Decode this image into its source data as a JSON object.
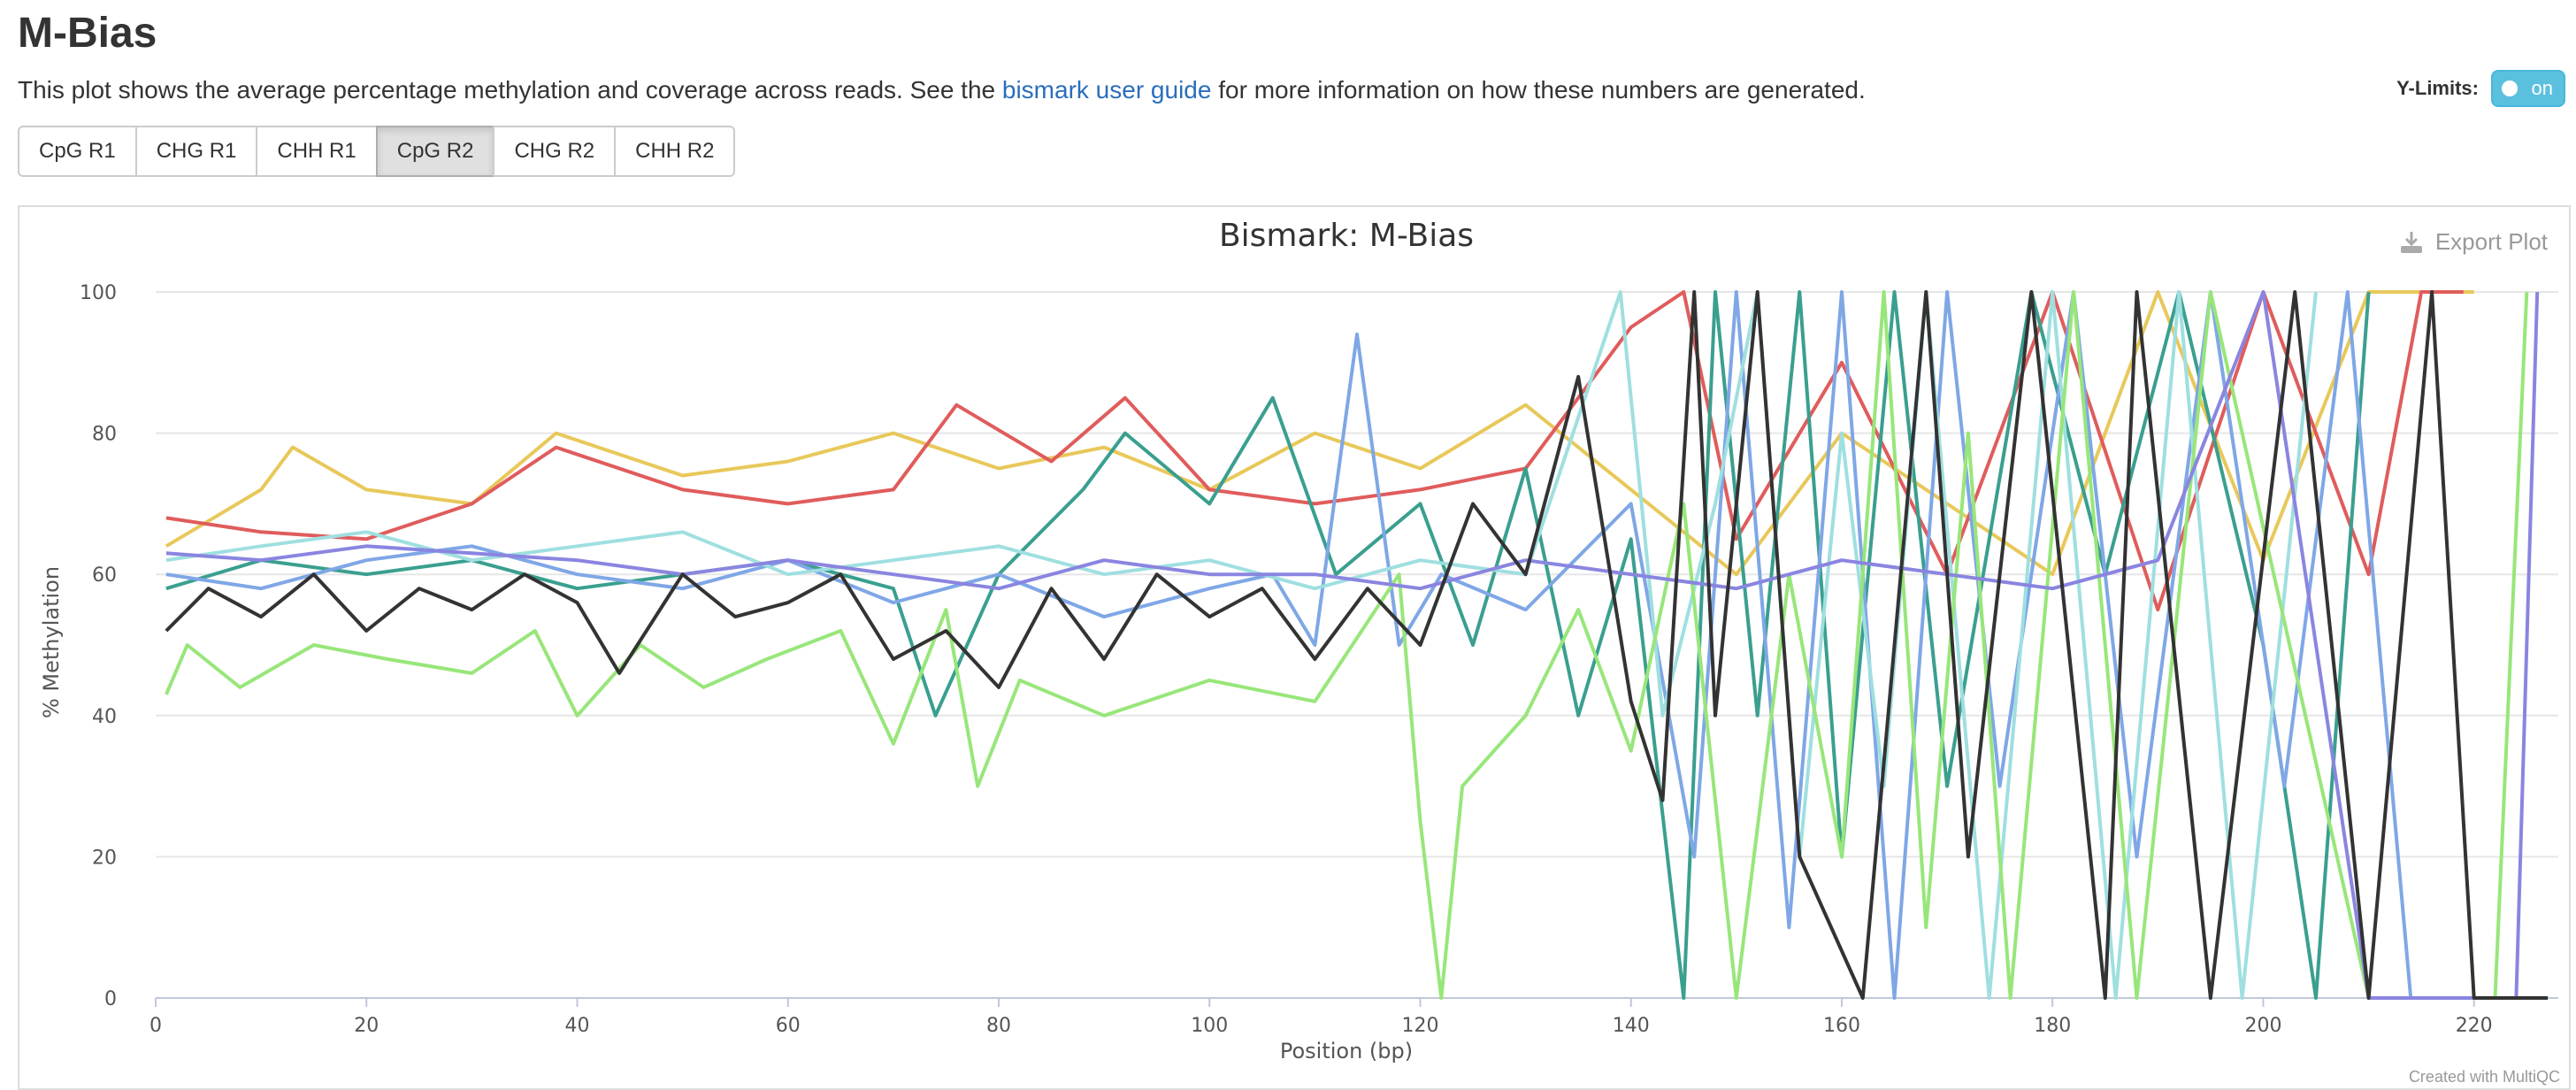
{
  "page": {
    "title": "M-Bias",
    "description_before": "This plot shows the average percentage methylation and coverage across reads. See the ",
    "description_link": "bismark user guide",
    "description_after": " for more information on how these numbers are generated."
  },
  "ylimits": {
    "label": "Y-Limits:",
    "toggle_text": "on",
    "state": "on"
  },
  "tabs": [
    {
      "label": "CpG R1",
      "active": false
    },
    {
      "label": "CHG R1",
      "active": false
    },
    {
      "label": "CHH R1",
      "active": false
    },
    {
      "label": "CpG R2",
      "active": true
    },
    {
      "label": "CHG R2",
      "active": false
    },
    {
      "label": "CHH R2",
      "active": false
    }
  ],
  "plot": {
    "export_label": "Export Plot",
    "credit": "Created with MultiQC"
  },
  "colors": {
    "link": "#2a6ebb",
    "toggle": "#5bc0de",
    "active_tab": "#e0e0e0",
    "grid": "#e6e6e6"
  },
  "chart_data": {
    "type": "line",
    "title": "Bismark: M-Bias",
    "xlabel": "Position (bp)",
    "ylabel": "% Methylation",
    "xlim": [
      0,
      228
    ],
    "ylim": [
      0,
      100
    ],
    "xticks": [
      0,
      20,
      40,
      60,
      80,
      100,
      120,
      140,
      160,
      180,
      200,
      220
    ],
    "yticks": [
      0,
      20,
      40,
      60,
      80,
      100
    ],
    "grid": true,
    "legend": "none",
    "series": [
      {
        "color": "#e8c85a",
        "points": [
          [
            1,
            64
          ],
          [
            10,
            72
          ],
          [
            13,
            78
          ],
          [
            20,
            72
          ],
          [
            30,
            70
          ],
          [
            38,
            80
          ],
          [
            50,
            74
          ],
          [
            60,
            76
          ],
          [
            70,
            80
          ],
          [
            80,
            75
          ],
          [
            90,
            78
          ],
          [
            100,
            72
          ],
          [
            110,
            80
          ],
          [
            120,
            75
          ],
          [
            130,
            84
          ],
          [
            140,
            72
          ],
          [
            150,
            60
          ],
          [
            160,
            80
          ],
          [
            170,
            70
          ],
          [
            180,
            60
          ],
          [
            190,
            100
          ],
          [
            200,
            62
          ],
          [
            210,
            100
          ],
          [
            220,
            100
          ]
        ]
      },
      {
        "color": "#e05c5c",
        "points": [
          [
            1,
            68
          ],
          [
            10,
            66
          ],
          [
            20,
            65
          ],
          [
            30,
            70
          ],
          [
            38,
            78
          ],
          [
            50,
            72
          ],
          [
            60,
            70
          ],
          [
            70,
            72
          ],
          [
            76,
            84
          ],
          [
            85,
            76
          ],
          [
            92,
            85
          ],
          [
            100,
            72
          ],
          [
            110,
            70
          ],
          [
            120,
            72
          ],
          [
            130,
            75
          ],
          [
            140,
            95
          ],
          [
            145,
            100
          ],
          [
            150,
            65
          ],
          [
            160,
            90
          ],
          [
            170,
            60
          ],
          [
            180,
            100
          ],
          [
            190,
            55
          ],
          [
            200,
            100
          ],
          [
            210,
            60
          ],
          [
            215,
            100
          ],
          [
            219,
            100
          ]
        ]
      },
      {
        "color": "#3a9f8f",
        "points": [
          [
            1,
            58
          ],
          [
            10,
            62
          ],
          [
            20,
            60
          ],
          [
            30,
            62
          ],
          [
            40,
            58
          ],
          [
            50,
            60
          ],
          [
            60,
            62
          ],
          [
            70,
            58
          ],
          [
            74,
            40
          ],
          [
            80,
            60
          ],
          [
            88,
            72
          ],
          [
            92,
            80
          ],
          [
            100,
            70
          ],
          [
            106,
            85
          ],
          [
            112,
            60
          ],
          [
            120,
            70
          ],
          [
            125,
            50
          ],
          [
            130,
            75
          ],
          [
            135,
            40
          ],
          [
            140,
            65
          ],
          [
            145,
            0
          ],
          [
            148,
            100
          ],
          [
            152,
            40
          ],
          [
            156,
            100
          ],
          [
            160,
            20
          ],
          [
            165,
            100
          ],
          [
            170,
            30
          ],
          [
            178,
            100
          ],
          [
            185,
            60
          ],
          [
            192,
            100
          ],
          [
            200,
            50
          ],
          [
            205,
            0
          ],
          [
            210,
            100
          ]
        ]
      },
      {
        "color": "#7fa7e6",
        "points": [
          [
            1,
            60
          ],
          [
            10,
            58
          ],
          [
            20,
            62
          ],
          [
            30,
            64
          ],
          [
            40,
            60
          ],
          [
            50,
            58
          ],
          [
            60,
            62
          ],
          [
            70,
            56
          ],
          [
            80,
            60
          ],
          [
            90,
            54
          ],
          [
            100,
            58
          ],
          [
            106,
            60
          ],
          [
            110,
            50
          ],
          [
            114,
            94
          ],
          [
            118,
            50
          ],
          [
            122,
            60
          ],
          [
            130,
            55
          ],
          [
            140,
            70
          ],
          [
            146,
            20
          ],
          [
            150,
            100
          ],
          [
            155,
            10
          ],
          [
            160,
            100
          ],
          [
            165,
            0
          ],
          [
            170,
            100
          ],
          [
            175,
            30
          ],
          [
            182,
            100
          ],
          [
            188,
            20
          ],
          [
            195,
            100
          ],
          [
            202,
            30
          ],
          [
            208,
            100
          ],
          [
            214,
            0
          ]
        ]
      },
      {
        "color": "#9fdfe0",
        "points": [
          [
            1,
            62
          ],
          [
            10,
            64
          ],
          [
            20,
            66
          ],
          [
            30,
            62
          ],
          [
            40,
            64
          ],
          [
            50,
            66
          ],
          [
            60,
            60
          ],
          [
            70,
            62
          ],
          [
            80,
            64
          ],
          [
            90,
            60
          ],
          [
            100,
            62
          ],
          [
            110,
            58
          ],
          [
            120,
            62
          ],
          [
            130,
            60
          ],
          [
            139,
            100
          ],
          [
            143,
            40
          ],
          [
            148,
            70
          ],
          [
            152,
            100
          ],
          [
            156,
            20
          ],
          [
            160,
            80
          ],
          [
            164,
            30
          ],
          [
            168,
            100
          ],
          [
            174,
            0
          ],
          [
            180,
            100
          ],
          [
            186,
            0
          ],
          [
            192,
            100
          ],
          [
            198,
            0
          ],
          [
            205,
            100
          ]
        ]
      },
      {
        "color": "#98e67a",
        "points": [
          [
            1,
            43
          ],
          [
            3,
            50
          ],
          [
            8,
            44
          ],
          [
            15,
            50
          ],
          [
            22,
            48
          ],
          [
            30,
            46
          ],
          [
            36,
            52
          ],
          [
            40,
            40
          ],
          [
            46,
            50
          ],
          [
            52,
            44
          ],
          [
            58,
            48
          ],
          [
            65,
            52
          ],
          [
            70,
            36
          ],
          [
            75,
            55
          ],
          [
            78,
            30
          ],
          [
            82,
            45
          ],
          [
            90,
            40
          ],
          [
            100,
            45
          ],
          [
            110,
            42
          ],
          [
            118,
            60
          ],
          [
            120,
            25
          ],
          [
            122,
            0
          ],
          [
            124,
            30
          ],
          [
            130,
            40
          ],
          [
            135,
            55
          ],
          [
            140,
            35
          ],
          [
            145,
            70
          ],
          [
            150,
            0
          ],
          [
            155,
            60
          ],
          [
            160,
            20
          ],
          [
            164,
            100
          ],
          [
            168,
            10
          ],
          [
            172,
            80
          ],
          [
            176,
            0
          ],
          [
            182,
            100
          ],
          [
            188,
            0
          ],
          [
            195,
            100
          ],
          [
            210,
            0
          ],
          [
            222,
            0
          ],
          [
            225,
            100
          ]
        ]
      },
      {
        "color": "#8a85e0",
        "points": [
          [
            1,
            63
          ],
          [
            10,
            62
          ],
          [
            20,
            64
          ],
          [
            30,
            63
          ],
          [
            40,
            62
          ],
          [
            50,
            60
          ],
          [
            60,
            62
          ],
          [
            70,
            60
          ],
          [
            80,
            58
          ],
          [
            90,
            62
          ],
          [
            100,
            60
          ],
          [
            110,
            60
          ],
          [
            120,
            58
          ],
          [
            130,
            62
          ],
          [
            140,
            60
          ],
          [
            150,
            58
          ],
          [
            160,
            62
          ],
          [
            170,
            60
          ],
          [
            180,
            58
          ],
          [
            190,
            62
          ],
          [
            200,
            100
          ],
          [
            210,
            0
          ],
          [
            220,
            0
          ],
          [
            224,
            0
          ],
          [
            226,
            100
          ]
        ]
      },
      {
        "color": "#333333",
        "points": [
          [
            1,
            52
          ],
          [
            5,
            58
          ],
          [
            10,
            54
          ],
          [
            15,
            60
          ],
          [
            20,
            52
          ],
          [
            25,
            58
          ],
          [
            30,
            55
          ],
          [
            35,
            60
          ],
          [
            40,
            56
          ],
          [
            44,
            46
          ],
          [
            50,
            60
          ],
          [
            55,
            54
          ],
          [
            60,
            56
          ],
          [
            65,
            60
          ],
          [
            70,
            48
          ],
          [
            75,
            52
          ],
          [
            80,
            44
          ],
          [
            85,
            58
          ],
          [
            90,
            48
          ],
          [
            95,
            60
          ],
          [
            100,
            54
          ],
          [
            105,
            58
          ],
          [
            110,
            48
          ],
          [
            115,
            58
          ],
          [
            120,
            50
          ],
          [
            125,
            70
          ],
          [
            130,
            60
          ],
          [
            135,
            88
          ],
          [
            140,
            42
          ],
          [
            143,
            28
          ],
          [
            146,
            100
          ],
          [
            148,
            40
          ],
          [
            152,
            100
          ],
          [
            156,
            20
          ],
          [
            162,
            0
          ],
          [
            168,
            100
          ],
          [
            172,
            20
          ],
          [
            178,
            100
          ],
          [
            185,
            0
          ],
          [
            188,
            100
          ],
          [
            195,
            0
          ],
          [
            203,
            100
          ],
          [
            210,
            0
          ],
          [
            216,
            100
          ],
          [
            220,
            0
          ],
          [
            227,
            0
          ]
        ]
      }
    ]
  }
}
